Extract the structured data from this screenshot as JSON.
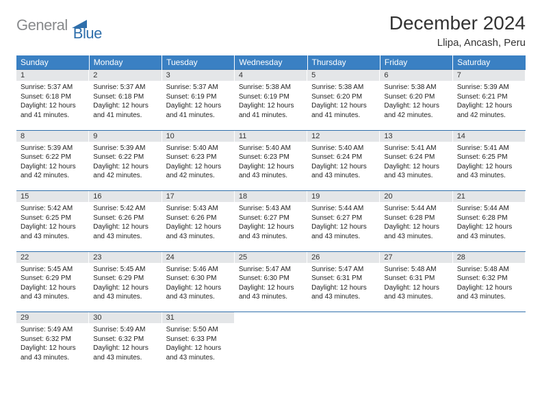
{
  "logo": {
    "general": "General",
    "blue": "Blue"
  },
  "title": "December 2024",
  "location": "Llipa, Ancash, Peru",
  "colors": {
    "header_bg": "#3a80c3",
    "header_text": "#ffffff",
    "daynum_bg": "#e4e6e8",
    "border": "#2f6fab",
    "logo_gray": "#888a8c",
    "logo_blue": "#2f6fab",
    "text": "#222222",
    "background": "#ffffff"
  },
  "typography": {
    "title_fontsize": 28,
    "location_fontsize": 15,
    "header_fontsize": 12,
    "daynum_fontsize": 11,
    "cell_fontsize": 10
  },
  "weekdays": [
    "Sunday",
    "Monday",
    "Tuesday",
    "Wednesday",
    "Thursday",
    "Friday",
    "Saturday"
  ],
  "weeks": [
    [
      {
        "n": "1",
        "sr": "5:37 AM",
        "ss": "6:18 PM",
        "dl": "12 hours and 41 minutes."
      },
      {
        "n": "2",
        "sr": "5:37 AM",
        "ss": "6:18 PM",
        "dl": "12 hours and 41 minutes."
      },
      {
        "n": "3",
        "sr": "5:37 AM",
        "ss": "6:19 PM",
        "dl": "12 hours and 41 minutes."
      },
      {
        "n": "4",
        "sr": "5:38 AM",
        "ss": "6:19 PM",
        "dl": "12 hours and 41 minutes."
      },
      {
        "n": "5",
        "sr": "5:38 AM",
        "ss": "6:20 PM",
        "dl": "12 hours and 41 minutes."
      },
      {
        "n": "6",
        "sr": "5:38 AM",
        "ss": "6:20 PM",
        "dl": "12 hours and 42 minutes."
      },
      {
        "n": "7",
        "sr": "5:39 AM",
        "ss": "6:21 PM",
        "dl": "12 hours and 42 minutes."
      }
    ],
    [
      {
        "n": "8",
        "sr": "5:39 AM",
        "ss": "6:22 PM",
        "dl": "12 hours and 42 minutes."
      },
      {
        "n": "9",
        "sr": "5:39 AM",
        "ss": "6:22 PM",
        "dl": "12 hours and 42 minutes."
      },
      {
        "n": "10",
        "sr": "5:40 AM",
        "ss": "6:23 PM",
        "dl": "12 hours and 42 minutes."
      },
      {
        "n": "11",
        "sr": "5:40 AM",
        "ss": "6:23 PM",
        "dl": "12 hours and 43 minutes."
      },
      {
        "n": "12",
        "sr": "5:40 AM",
        "ss": "6:24 PM",
        "dl": "12 hours and 43 minutes."
      },
      {
        "n": "13",
        "sr": "5:41 AM",
        "ss": "6:24 PM",
        "dl": "12 hours and 43 minutes."
      },
      {
        "n": "14",
        "sr": "5:41 AM",
        "ss": "6:25 PM",
        "dl": "12 hours and 43 minutes."
      }
    ],
    [
      {
        "n": "15",
        "sr": "5:42 AM",
        "ss": "6:25 PM",
        "dl": "12 hours and 43 minutes."
      },
      {
        "n": "16",
        "sr": "5:42 AM",
        "ss": "6:26 PM",
        "dl": "12 hours and 43 minutes."
      },
      {
        "n": "17",
        "sr": "5:43 AM",
        "ss": "6:26 PM",
        "dl": "12 hours and 43 minutes."
      },
      {
        "n": "18",
        "sr": "5:43 AM",
        "ss": "6:27 PM",
        "dl": "12 hours and 43 minutes."
      },
      {
        "n": "19",
        "sr": "5:44 AM",
        "ss": "6:27 PM",
        "dl": "12 hours and 43 minutes."
      },
      {
        "n": "20",
        "sr": "5:44 AM",
        "ss": "6:28 PM",
        "dl": "12 hours and 43 minutes."
      },
      {
        "n": "21",
        "sr": "5:44 AM",
        "ss": "6:28 PM",
        "dl": "12 hours and 43 minutes."
      }
    ],
    [
      {
        "n": "22",
        "sr": "5:45 AM",
        "ss": "6:29 PM",
        "dl": "12 hours and 43 minutes."
      },
      {
        "n": "23",
        "sr": "5:45 AM",
        "ss": "6:29 PM",
        "dl": "12 hours and 43 minutes."
      },
      {
        "n": "24",
        "sr": "5:46 AM",
        "ss": "6:30 PM",
        "dl": "12 hours and 43 minutes."
      },
      {
        "n": "25",
        "sr": "5:47 AM",
        "ss": "6:30 PM",
        "dl": "12 hours and 43 minutes."
      },
      {
        "n": "26",
        "sr": "5:47 AM",
        "ss": "6:31 PM",
        "dl": "12 hours and 43 minutes."
      },
      {
        "n": "27",
        "sr": "5:48 AM",
        "ss": "6:31 PM",
        "dl": "12 hours and 43 minutes."
      },
      {
        "n": "28",
        "sr": "5:48 AM",
        "ss": "6:32 PM",
        "dl": "12 hours and 43 minutes."
      }
    ],
    [
      {
        "n": "29",
        "sr": "5:49 AM",
        "ss": "6:32 PM",
        "dl": "12 hours and 43 minutes."
      },
      {
        "n": "30",
        "sr": "5:49 AM",
        "ss": "6:32 PM",
        "dl": "12 hours and 43 minutes."
      },
      {
        "n": "31",
        "sr": "5:50 AM",
        "ss": "6:33 PM",
        "dl": "12 hours and 43 minutes."
      },
      null,
      null,
      null,
      null
    ]
  ],
  "labels": {
    "sunrise": "Sunrise:",
    "sunset": "Sunset:",
    "daylight": "Daylight:"
  }
}
